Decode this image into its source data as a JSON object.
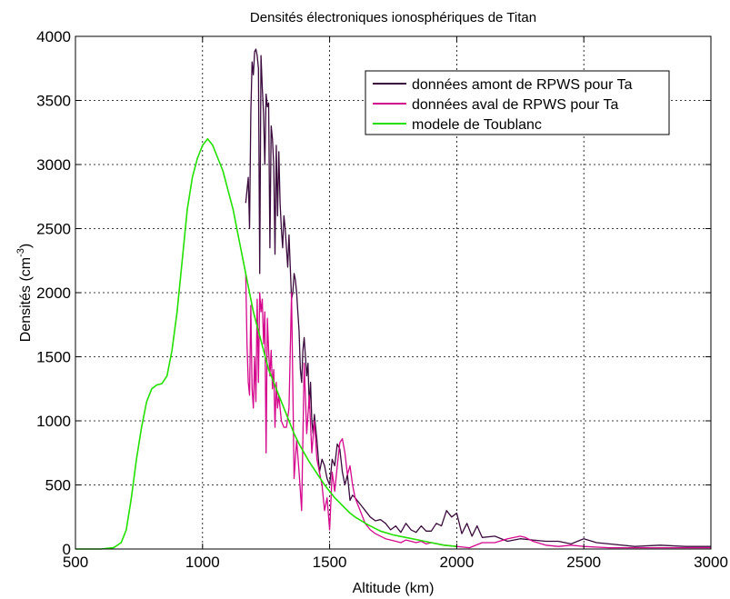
{
  "chart_data": {
    "type": "line",
    "title": "Densités électroniques ionosphériques de Titan",
    "xlabel": "Altitude (km)",
    "ylabel_prefix": "Densités (cm",
    "ylabel_exponent": "-3",
    "ylabel_suffix": ")",
    "xlim": [
      500,
      3000
    ],
    "ylim": [
      0,
      4000
    ],
    "xticks": [
      500,
      1000,
      1500,
      2000,
      2500,
      3000
    ],
    "yticks": [
      0,
      500,
      1000,
      1500,
      2000,
      2500,
      3000,
      3500,
      4000
    ],
    "grid": true,
    "legend_position": "top-right",
    "series": [
      {
        "name": "données amont de RPWS pour Ta",
        "color": "#3a0a3c",
        "x": [
          1170,
          1180,
          1185,
          1190,
          1195,
          1200,
          1205,
          1210,
          1215,
          1220,
          1225,
          1230,
          1235,
          1240,
          1245,
          1250,
          1255,
          1260,
          1265,
          1270,
          1275,
          1280,
          1285,
          1290,
          1295,
          1300,
          1305,
          1310,
          1315,
          1320,
          1325,
          1330,
          1335,
          1340,
          1345,
          1350,
          1355,
          1360,
          1365,
          1370,
          1375,
          1380,
          1385,
          1390,
          1395,
          1400,
          1405,
          1410,
          1415,
          1420,
          1425,
          1430,
          1435,
          1440,
          1445,
          1450,
          1460,
          1470,
          1480,
          1490,
          1500,
          1510,
          1520,
          1530,
          1540,
          1550,
          1560,
          1570,
          1580,
          1590,
          1600,
          1620,
          1640,
          1660,
          1680,
          1700,
          1720,
          1740,
          1760,
          1780,
          1800,
          1820,
          1840,
          1860,
          1880,
          1900,
          1920,
          1940,
          1960,
          1980,
          2000,
          2020,
          2040,
          2060,
          2080,
          2100,
          2150,
          2200,
          2250,
          2300,
          2350,
          2400,
          2450,
          2500,
          2550,
          2600,
          2700,
          2800,
          2900,
          3000
        ],
        "values": [
          2700,
          2900,
          2500,
          3400,
          3800,
          3700,
          3880,
          3900,
          3850,
          3750,
          2150,
          3850,
          3600,
          3400,
          3000,
          3550,
          3450,
          3480,
          2350,
          3300,
          3200,
          3000,
          2300,
          3150,
          2600,
          3100,
          2700,
          2500,
          2350,
          2600,
          2500,
          2350,
          2200,
          2450,
          2200,
          1950,
          2000,
          2150,
          2100,
          2000,
          1850,
          1700,
          1400,
          1300,
          1550,
          1650,
          1500,
          1350,
          1450,
          1100,
          1300,
          1000,
          900,
          1050,
          950,
          850,
          600,
          700,
          650,
          550,
          500,
          700,
          650,
          820,
          780,
          600,
          500,
          580,
          380,
          420,
          400,
          350,
          300,
          250,
          220,
          230,
          200,
          150,
          180,
          130,
          200,
          150,
          130,
          180,
          140,
          140,
          200,
          180,
          300,
          250,
          280,
          120,
          200,
          100,
          180,
          90,
          100,
          60,
          80,
          70,
          60,
          60,
          40,
          80,
          50,
          40,
          20,
          30,
          20,
          20
        ]
      },
      {
        "name": "données aval de RPWS pour Ta",
        "color": "#d4088c",
        "x": [
          1170,
          1175,
          1180,
          1185,
          1190,
          1195,
          1200,
          1205,
          1210,
          1215,
          1220,
          1225,
          1230,
          1235,
          1240,
          1245,
          1250,
          1255,
          1260,
          1265,
          1270,
          1275,
          1280,
          1285,
          1290,
          1295,
          1300,
          1310,
          1320,
          1330,
          1340,
          1350,
          1360,
          1370,
          1380,
          1390,
          1400,
          1410,
          1420,
          1430,
          1440,
          1450,
          1460,
          1470,
          1480,
          1490,
          1500,
          1510,
          1520,
          1530,
          1540,
          1550,
          1560,
          1570,
          1580,
          1590,
          1600,
          1620,
          1640,
          1660,
          1680,
          1700,
          1720,
          1740,
          1760,
          1780,
          1800,
          1820,
          1840,
          1860,
          1880,
          1900,
          1950,
          2000,
          2050,
          2100,
          2150,
          2200,
          2250,
          2270,
          2300,
          2350,
          2400,
          2450,
          2500,
          2600,
          2700,
          2800,
          2900,
          3000
        ],
        "values": [
          2150,
          1600,
          1300,
          1200,
          1900,
          1250,
          1100,
          1500,
          1150,
          1950,
          1300,
          2000,
          1850,
          1950,
          1600,
          1850,
          750,
          1800,
          1550,
          1350,
          1550,
          1250,
          1400,
          950,
          1300,
          1100,
          1200,
          1000,
          950,
          950,
          1100,
          2000,
          550,
          850,
          600,
          300,
          1450,
          900,
          1200,
          750,
          1000,
          700,
          600,
          500,
          300,
          400,
          150,
          600,
          450,
          650,
          830,
          860,
          750,
          580,
          650,
          500,
          400,
          300,
          200,
          150,
          120,
          100,
          80,
          70,
          60,
          50,
          70,
          60,
          50,
          60,
          40,
          50,
          30,
          20,
          10,
          50,
          50,
          80,
          100,
          90,
          60,
          30,
          20,
          30,
          20,
          10,
          10,
          10,
          10,
          10
        ]
      },
      {
        "name": "modele de Toublanc",
        "color": "#22e000",
        "x": [
          500,
          600,
          650,
          680,
          700,
          720,
          740,
          760,
          780,
          800,
          820,
          840,
          860,
          880,
          900,
          920,
          940,
          960,
          980,
          1000,
          1020,
          1040,
          1060,
          1080,
          1100,
          1120,
          1140,
          1160,
          1180,
          1200,
          1220,
          1240,
          1260,
          1280,
          1300,
          1320,
          1340,
          1360,
          1380,
          1400,
          1420,
          1440,
          1460,
          1480,
          1500,
          1520,
          1540,
          1560,
          1580,
          1600,
          1650,
          1700,
          1750,
          1800,
          1850,
          1900,
          1950,
          2000
        ],
        "values": [
          0,
          0,
          10,
          50,
          150,
          400,
          700,
          950,
          1150,
          1250,
          1280,
          1290,
          1350,
          1550,
          1850,
          2250,
          2650,
          2900,
          3050,
          3150,
          3200,
          3150,
          3050,
          2950,
          2800,
          2650,
          2450,
          2250,
          2050,
          1850,
          1700,
          1550,
          1400,
          1300,
          1200,
          1100,
          1000,
          900,
          820,
          750,
          680,
          620,
          560,
          500,
          450,
          400,
          360,
          320,
          280,
          250,
          190,
          140,
          110,
          90,
          70,
          50,
          30,
          20
        ]
      }
    ]
  }
}
